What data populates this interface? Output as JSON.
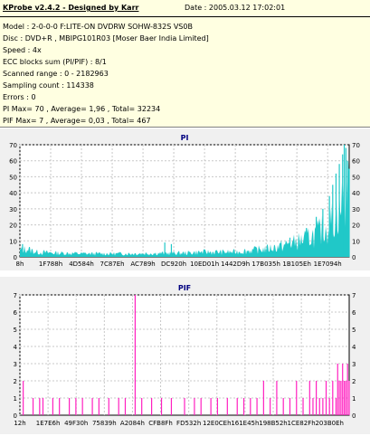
{
  "header": {
    "title": "KProbe v2.4.2 - Designed by Karr",
    "date": "Date : 2005.03.12 17:02:01",
    "lines": [
      "Model : 2-0-0-0 F:LITE-ON DVDRW SOHW-832S  VS0B",
      "Disc : DVD+R , MBIPG101R03 [Moser Baer India Limited]",
      "Speed : 4x",
      "ECC blocks sum (PI/PIF) : 8/1",
      "Scanned range : 0 - 2182963",
      "Sampling count : 114338",
      "Errors : 0",
      "PI Max= 70 , Average= 1,96 , Total= 32234",
      "PIF Max= 7 , Average= 0,03 , Total= 467"
    ]
  },
  "colors": {
    "header_bg": "#ffffe1",
    "pi_color": "#20c8c8",
    "pif_color": "#ff20c0",
    "plot_bg": "#ffffff",
    "title_color": "#000080"
  },
  "chart_data": [
    {
      "type": "area",
      "title": "PI",
      "ylim": [
        0,
        70
      ],
      "yticks": [
        0,
        10,
        20,
        30,
        40,
        50,
        60,
        70
      ],
      "xticks": [
        "8h",
        "1F788h",
        "4D584h",
        "7C87Eh",
        "AC789h",
        "DC920h",
        "10ED01h",
        "1442D9h",
        "17B035h",
        "1B105Eh",
        "1E7094h"
      ],
      "profile": [
        [
          0,
          4
        ],
        [
          0.02,
          5
        ],
        [
          0.05,
          3
        ],
        [
          0.1,
          2.5
        ],
        [
          0.2,
          2
        ],
        [
          0.3,
          2
        ],
        [
          0.4,
          2.2
        ],
        [
          0.5,
          2.4
        ],
        [
          0.55,
          3
        ],
        [
          0.6,
          3
        ],
        [
          0.65,
          3
        ],
        [
          0.7,
          4
        ],
        [
          0.75,
          5
        ],
        [
          0.8,
          7
        ],
        [
          0.85,
          10
        ],
        [
          0.9,
          14
        ],
        [
          0.94,
          20
        ],
        [
          0.97,
          30
        ],
        [
          1.0,
          40
        ]
      ],
      "peaks": [
        [
          0.008,
          8
        ],
        [
          0.44,
          9
        ],
        [
          0.46,
          8
        ],
        [
          0.82,
          12
        ],
        [
          0.87,
          18
        ],
        [
          0.9,
          25
        ],
        [
          0.92,
          30
        ],
        [
          0.94,
          38
        ],
        [
          0.95,
          45
        ],
        [
          0.96,
          52
        ],
        [
          0.97,
          58
        ],
        [
          0.98,
          64
        ],
        [
          0.985,
          70
        ],
        [
          0.99,
          68
        ],
        [
          0.995,
          60
        ],
        [
          1.0,
          55
        ]
      ]
    },
    {
      "type": "bar",
      "title": "PIF",
      "ylim": [
        0,
        7
      ],
      "yticks": [
        0,
        1,
        2,
        3,
        4,
        5,
        6,
        7
      ],
      "xticks": [
        "12h",
        "1E7E6h",
        "49F30h",
        "75839h",
        "A2084h",
        "CFB8Fh",
        "FD532h",
        "12E0CEh",
        "161E45h",
        "198B52h",
        "1CE82Fh",
        "203B0Eh"
      ],
      "bars": [
        [
          0.01,
          2
        ],
        [
          0.04,
          1
        ],
        [
          0.06,
          1
        ],
        [
          0.07,
          1
        ],
        [
          0.1,
          1
        ],
        [
          0.12,
          1
        ],
        [
          0.15,
          1
        ],
        [
          0.17,
          1
        ],
        [
          0.19,
          1
        ],
        [
          0.22,
          1
        ],
        [
          0.24,
          1
        ],
        [
          0.27,
          1
        ],
        [
          0.3,
          1
        ],
        [
          0.32,
          1
        ],
        [
          0.35,
          7
        ],
        [
          0.37,
          1
        ],
        [
          0.4,
          1
        ],
        [
          0.43,
          1
        ],
        [
          0.46,
          1
        ],
        [
          0.5,
          1
        ],
        [
          0.53,
          1
        ],
        [
          0.55,
          1
        ],
        [
          0.58,
          1
        ],
        [
          0.6,
          1
        ],
        [
          0.63,
          1
        ],
        [
          0.66,
          1
        ],
        [
          0.68,
          1
        ],
        [
          0.7,
          1
        ],
        [
          0.72,
          1
        ],
        [
          0.74,
          2
        ],
        [
          0.76,
          1
        ],
        [
          0.78,
          2
        ],
        [
          0.8,
          1
        ],
        [
          0.82,
          1
        ],
        [
          0.84,
          2
        ],
        [
          0.86,
          1
        ],
        [
          0.88,
          2
        ],
        [
          0.89,
          1
        ],
        [
          0.9,
          2
        ],
        [
          0.91,
          1
        ],
        [
          0.92,
          1
        ],
        [
          0.93,
          2
        ],
        [
          0.94,
          1
        ],
        [
          0.95,
          2
        ],
        [
          0.96,
          1
        ],
        [
          0.965,
          3
        ],
        [
          0.97,
          2
        ],
        [
          0.975,
          2
        ],
        [
          0.98,
          3
        ],
        [
          0.985,
          2
        ],
        [
          0.99,
          2
        ],
        [
          0.995,
          3
        ],
        [
          1.0,
          2
        ]
      ]
    }
  ]
}
